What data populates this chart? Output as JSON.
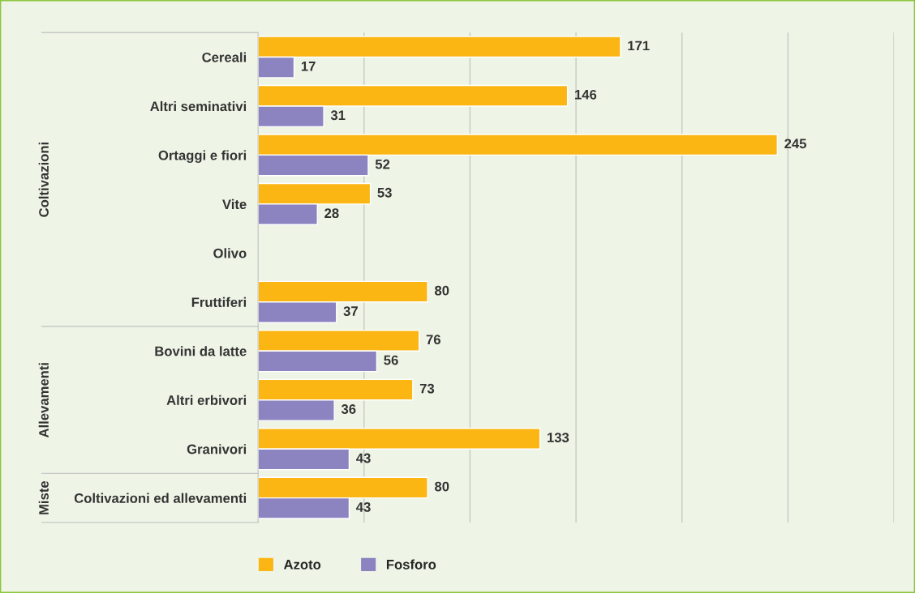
{
  "chart_data": {
    "type": "bar",
    "orientation": "horizontal",
    "categories": [
      "Cereali",
      "Altri seminativi",
      "Ortaggi e fiori",
      "Vite",
      "Olivo",
      "Fruttiferi",
      "Bovini da latte",
      "Altri erbivori",
      "Granivori",
      "Coltivazioni ed allevamenti"
    ],
    "series": [
      {
        "name": "Azoto",
        "color": "#fbb614",
        "values": [
          171,
          146,
          245,
          53,
          null,
          80,
          76,
          73,
          133,
          80
        ]
      },
      {
        "name": "Fosforo",
        "color": "#8b84c0",
        "values": [
          17,
          31,
          52,
          28,
          null,
          37,
          56,
          36,
          43,
          43
        ]
      }
    ],
    "xlim": [
      0,
      300
    ],
    "xticks": [
      {
        "value": 0,
        "label": null
      },
      {
        "value": 50,
        "label": null
      },
      {
        "value": 100,
        "label": null
      },
      {
        "value": 150,
        "label": null
      },
      {
        "value": 200,
        "label": null
      },
      {
        "value": 250,
        "label": null
      },
      {
        "value": 300,
        "label": null
      }
    ],
    "tick_labels": "y",
    "grid": "x",
    "legend": "bottom",
    "data_labels": true,
    "annotations": [
      "Coltivazioni",
      "Allevamenti",
      "Miste"
    ]
  }
}
